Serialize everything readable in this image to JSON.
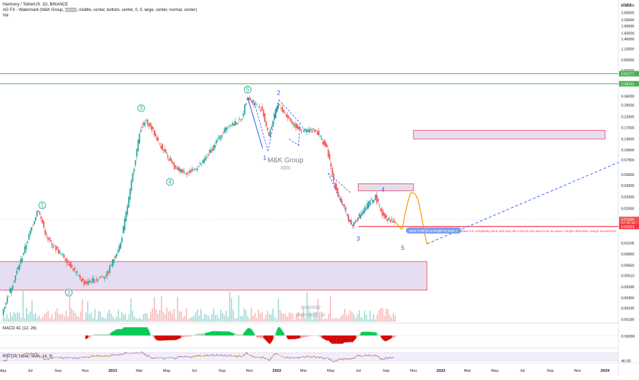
{
  "header": {
    "symbol_line": "Harmony / TetherUS, 1D, BINANCE",
    "watermark_line": "AG FX - Watermark (M&K Group, ▒▒▒▒, middle, center, bottom, center, 0, 0, large, center, normal, center)",
    "vol_line": "Vol"
  },
  "colors": {
    "up": "#26a69a",
    "down": "#ef5350",
    "wave_label": "#26a69a",
    "wave_label_blue": "#2962ff",
    "level_green": "#4caf50",
    "level_red": "#f23645",
    "zone_fill": "#e1d8f0",
    "projection": "#ff9800"
  },
  "price_axis": {
    "currency": "USDT",
    "scale": "log",
    "ticks": [
      "3.10000",
      "2.60000",
      "2.20000",
      "1.90000",
      "1.60000",
      "1.40000",
      "1.10000",
      "0.85000",
      "0.66000",
      "0.61277",
      "0.48241",
      "0.36000",
      "0.29000",
      "0.22000",
      "0.17000",
      "0.13000",
      "0.10000",
      "0.07900",
      "0.05600",
      "0.04300",
      "0.03300",
      "0.02500",
      "0.01930",
      "01:25:45",
      "0.01633",
      "0.01100",
      "0.00850",
      "0.00650",
      "0.00510",
      "0.00390",
      "0.00300",
      "0.00235",
      "0.00180"
    ],
    "badges": [
      {
        "text": "0.61277",
        "color": "#4caf50"
      },
      {
        "text": "0.48241",
        "color": "#4caf50"
      },
      {
        "text": "0.01930",
        "color": "#ef5350"
      },
      {
        "text": "01:25:45",
        "color": "#ef5350"
      },
      {
        "text": "0.01633",
        "color": "#f23645"
      }
    ]
  },
  "time_axis": [
    "May",
    "Jul",
    "Sep",
    "Nov",
    "2021",
    "Mar",
    "May",
    "Jul",
    "Sep",
    "Nov",
    "2022",
    "Mar",
    "May",
    "Jul",
    "Sep",
    "Nov",
    "2023",
    "Mar",
    "May",
    "Jul",
    "Sep",
    "Nov",
    "2024"
  ],
  "levels": {
    "green": [
      0.61277,
      0.48241
    ],
    "red_support": 0.01633
  },
  "zones": [
    {
      "name": "lower-demand-zone",
      "from": "2020-04",
      "to": "2022-12",
      "low": 0.0036,
      "high": 0.0071
    },
    {
      "name": "wave4-zone",
      "from": "2022-07",
      "to": "2022-11",
      "low": 0.038,
      "high": 0.045
    },
    {
      "name": "upper-target-zone",
      "from": "2022-11",
      "to": "2024-01",
      "low": 0.13,
      "high": 0.16
    }
  ],
  "wave_labels": [
    {
      "text": "1",
      "style": "circle",
      "price": 0.024
    },
    {
      "text": "2",
      "style": "circle",
      "price": 0.004
    },
    {
      "text": "3",
      "style": "circle",
      "price": 0.19
    },
    {
      "text": "4",
      "style": "circle",
      "price": 0.044
    },
    {
      "text": "5",
      "style": "circle",
      "price": 0.38
    },
    {
      "text": "1",
      "style": "plain",
      "price": 0.092
    },
    {
      "text": "2",
      "style": "plain",
      "price": 0.33
    },
    {
      "text": "3",
      "style": "plain",
      "price": 0.0142
    },
    {
      "text": "4",
      "style": "plain",
      "price": 0.031
    },
    {
      "text": "5",
      "style": "plain",
      "price": 0.0115
    }
  ],
  "annotations": {
    "watermark": "M&K Group",
    "watermark_sub": "▒▒▒▒",
    "breakout_note": "breaking red line means wave 5 is completely done and may hits 0.014-0.012 area to be as wave 1 lenght otherwise  orange movements",
    "callout": "wave 5 will be as length as wave 1",
    "date_watermark": "20/9/2022",
    "symbol_watermark": "ONEUSDT · D"
  },
  "chart_data": {
    "type": "line",
    "title": "Harmony / TetherUS, 1D, BINANCE",
    "ylabel": "USDT",
    "yscale": "log",
    "ylim": [
      0.0017,
      3.3
    ],
    "grid": false,
    "series": [
      {
        "name": "ONEUSDT",
        "x": [
          "2020-05-01",
          "2020-06-15",
          "2020-07-20",
          "2020-08-10",
          "2020-09-20",
          "2020-11-01",
          "2020-12-20",
          "2021-01-20",
          "2021-02-10",
          "2021-03-05",
          "2021-03-20",
          "2021-04-20",
          "2021-05-20",
          "2021-06-20",
          "2021-07-20",
          "2021-08-20",
          "2021-09-15",
          "2021-10-15",
          "2021-10-28",
          "2021-11-15",
          "2021-12-01",
          "2021-12-15",
          "2022-01-05",
          "2022-01-20",
          "2022-02-10",
          "2022-03-01",
          "2022-04-01",
          "2022-04-25",
          "2022-05-10",
          "2022-05-25",
          "2022-06-18",
          "2022-07-05",
          "2022-07-25",
          "2022-08-10",
          "2022-08-25",
          "2022-09-10",
          "2022-09-20"
        ],
        "values": [
          0.0021,
          0.008,
          0.025,
          0.012,
          0.0075,
          0.0042,
          0.0052,
          0.011,
          0.038,
          0.17,
          0.2,
          0.11,
          0.065,
          0.058,
          0.072,
          0.12,
          0.18,
          0.2,
          0.35,
          0.3,
          0.26,
          0.14,
          0.3,
          0.24,
          0.18,
          0.16,
          0.16,
          0.1,
          0.045,
          0.03,
          0.0165,
          0.021,
          0.028,
          0.033,
          0.022,
          0.019,
          0.0185
        ]
      },
      {
        "name": "MACD 4C (12, 26)",
        "values": []
      },
      {
        "name": "RSI (14, close, SMA, 14, 3)",
        "values": []
      }
    ],
    "projection": {
      "orange_path": [
        [
          "2022-09-20",
          0.0185
        ],
        [
          "2022-10-25",
          0.036
        ],
        [
          "2022-12-01",
          0.0108
        ]
      ],
      "blue_dashed": [
        [
          "2022-12-01",
          0.0108
        ],
        [
          "2024-02-01",
          0.075
        ]
      ]
    },
    "volume_label": "Vol",
    "macd_label": "MACD 4C (12, 26)",
    "macd_zero": "0.00000",
    "rsi_label": "RSI (14, close, SMA, 14, 3)",
    "rsi_value": "40.00"
  }
}
